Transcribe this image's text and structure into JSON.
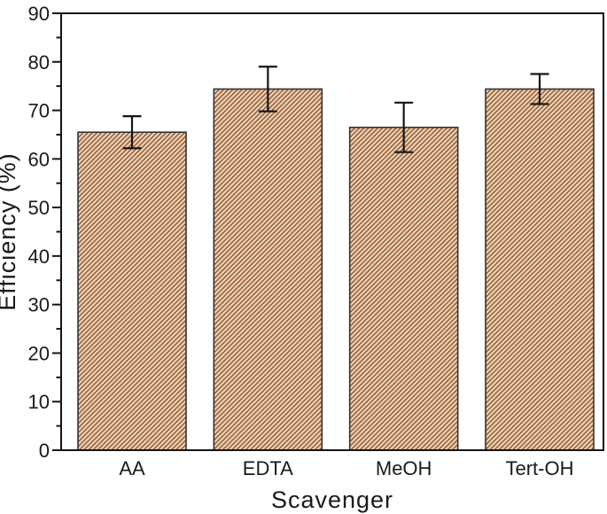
{
  "figure": {
    "background": "#ffffff",
    "kind": "scientific-bar-plot"
  },
  "chart_data": {
    "type": "bar",
    "title": "",
    "xlabel": "Scavenger",
    "ylabel": "Efficiency (%)",
    "categories": [
      "AA",
      "EDTA",
      "MeOH",
      "Tert-OH"
    ],
    "series": [
      {
        "name": "Efficiency",
        "values": [
          65.5,
          74.4,
          66.5,
          74.4
        ],
        "errors": [
          3.3,
          4.6,
          5.1,
          3.1
        ]
      }
    ],
    "ylim": [
      0,
      90
    ],
    "yticks": [
      0,
      10,
      20,
      30,
      40,
      50,
      60,
      70,
      80,
      90
    ],
    "ytick_step": 10,
    "yminor_step": 5,
    "grid": "off",
    "legend": "none",
    "bar_style": {
      "fill": "#f7c79f",
      "hatch": "diagonal-forward",
      "hatch_color": "#42382e",
      "edge_color": "#333333"
    },
    "axis_color": "#151515",
    "error_bar_color": "#151515",
    "text_color": "#1a1a1a"
  }
}
